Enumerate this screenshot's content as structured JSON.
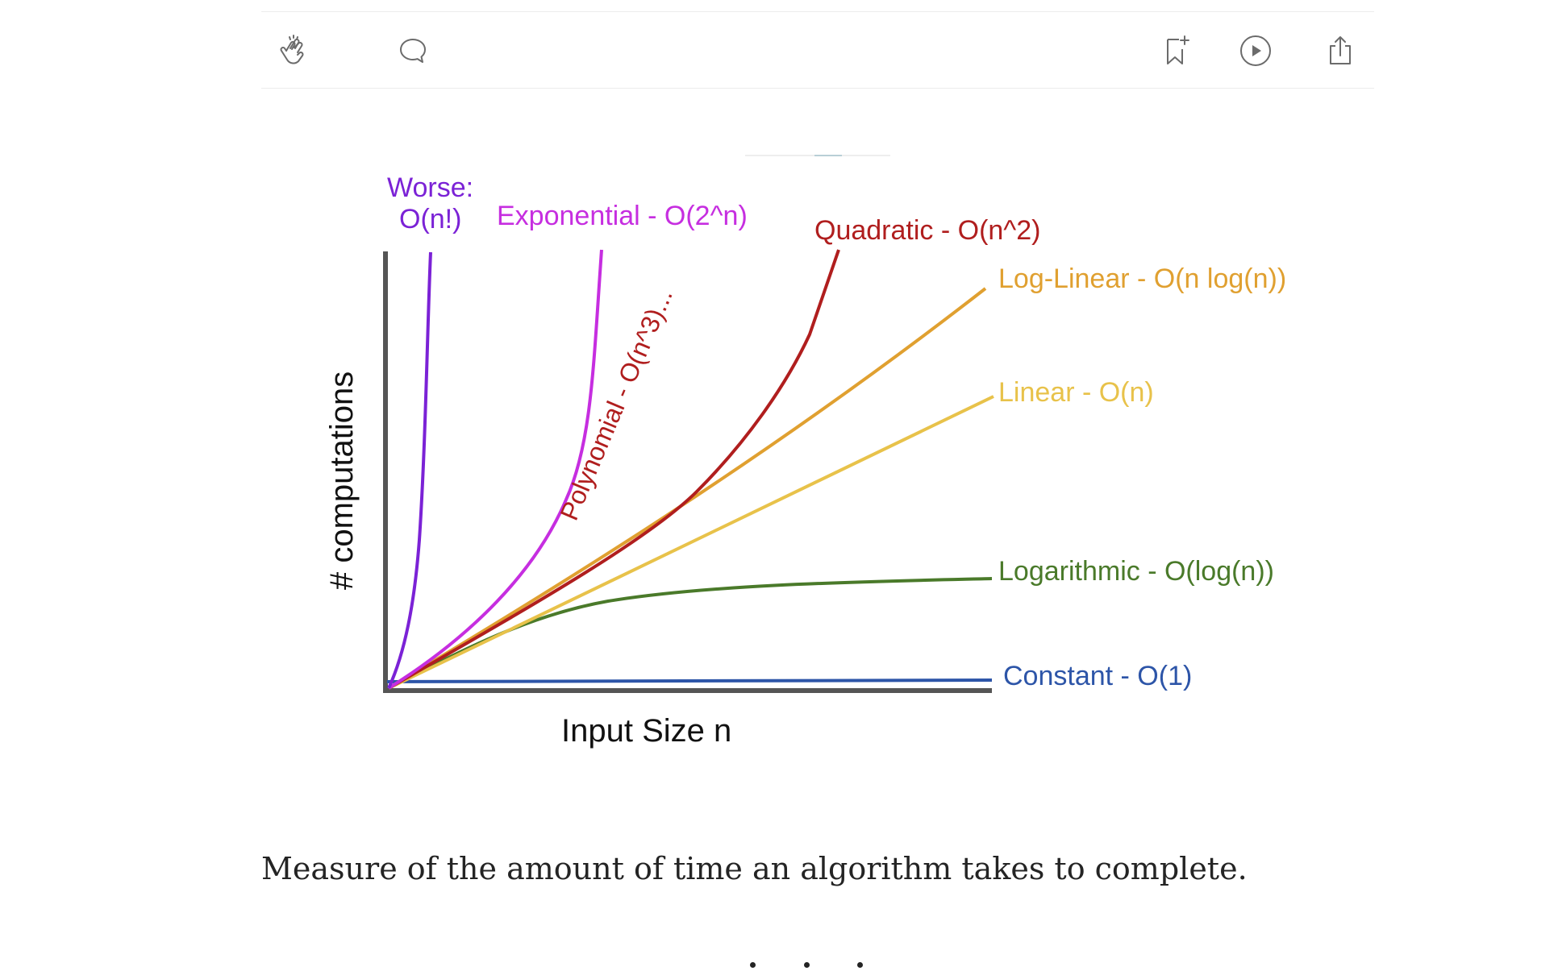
{
  "actions": {
    "clap_icon": "clap-icon",
    "comment_icon": "comment-icon",
    "bookmark_icon": "bookmark-add-icon",
    "listen_icon": "play-circle-icon",
    "share_icon": "share-icon"
  },
  "chart_data": {
    "type": "line",
    "title": "",
    "xlabel": "Input Size n",
    "ylabel": "# computations",
    "grid": false,
    "series": [
      {
        "name": "Worse: O(n!)",
        "label_line1": "Worse:",
        "label_line2": "O(n!)",
        "color": "#7b22d6",
        "growth": "factorial"
      },
      {
        "name": "Exponential - O(2^n)",
        "color": "#c62ee0",
        "growth": "exponential"
      },
      {
        "name": "Polynomial - O(n^3)...",
        "color": "#b01e1e",
        "growth": "polynomial"
      },
      {
        "name": "Quadratic - O(n^2)",
        "color": "#b01e1e",
        "growth": "quadratic"
      },
      {
        "name": "Log-Linear - O(n log(n))",
        "color": "#e0a030",
        "growth": "log-linear"
      },
      {
        "name": "Linear - O(n)",
        "color": "#e8c24a",
        "growth": "linear"
      },
      {
        "name": "Logarithmic - O(log(n))",
        "color": "#4a7a2a",
        "growth": "logarithmic"
      },
      {
        "name": "Constant - O(1)",
        "color": "#2d55a8",
        "growth": "constant"
      }
    ]
  },
  "caption": "Measure of the amount of time an algorithm takes to complete."
}
